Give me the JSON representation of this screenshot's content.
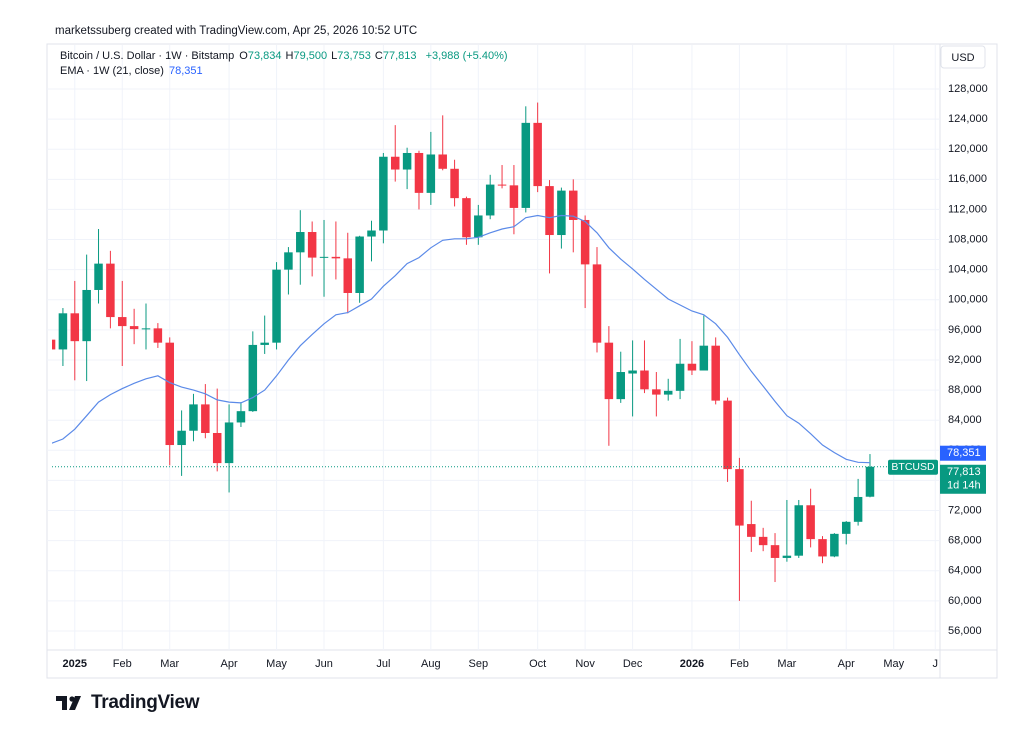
{
  "credit": "marketssuberg created with TradingView.com, Apr 25, 2026 10:52 UTC",
  "brand": "TradingView",
  "chart_data": {
    "type": "candlestick",
    "symbol": "Bitcoin / U.S. Dollar · 1W · Bitstamp",
    "ohlc": [
      {
        "label": "O",
        "value": "73,834"
      },
      {
        "label": "H",
        "value": "79,500"
      },
      {
        "label": "L",
        "value": "73,753"
      },
      {
        "label": "C",
        "value": "77,813"
      }
    ],
    "change": "+3,988 (+5.40%)",
    "currency": "USD",
    "countdown": "1d 14h",
    "up_color": "#089981",
    "down_color": "#f23645",
    "grid": true,
    "series": [
      {
        "name": "BTCUSD",
        "open": [
          94700,
          93400,
          98200,
          94500,
          101300,
          104800,
          97700,
          96500,
          96100,
          96200,
          94300,
          80700,
          82600,
          86100,
          82300,
          78300,
          83700,
          85200,
          94000,
          94300,
          104000,
          106300,
          109000,
          105600,
          105700,
          105500,
          100900,
          108400,
          109200,
          119000,
          117300,
          119500,
          114200,
          119300,
          117400,
          113500,
          108300,
          111200,
          115300,
          115200,
          112200,
          123500,
          115100,
          108600,
          114500,
          110600,
          104700,
          94300,
          86800,
          90200,
          90600,
          88100,
          87400,
          87900,
          91500,
          90600,
          93900,
          86600,
          77500,
          70200,
          68500,
          67400,
          65700,
          66000,
          72700,
          68200,
          65900,
          68900,
          70500,
          73834
        ],
        "high": [
          95300,
          98900,
          102500,
          106000,
          109400,
          106500,
          102500,
          98800,
          99500,
          96900,
          95000,
          85300,
          87500,
          88800,
          88200,
          86100,
          86400,
          95800,
          97900,
          105000,
          107000,
          111900,
          110400,
          110600,
          110400,
          108900,
          108500,
          110500,
          119500,
          123200,
          120200,
          119800,
          122300,
          124500,
          118600,
          113700,
          112600,
          116600,
          117900,
          117900,
          125700,
          126200,
          115900,
          114900,
          116000,
          111200,
          107000,
          96500,
          93100,
          94600,
          94600,
          90400,
          89500,
          94800,
          94500,
          97900,
          95000,
          87000,
          79000,
          73300,
          69700,
          69000,
          73400,
          73400,
          74900,
          68600,
          69000,
          70600,
          76200,
          79500
        ],
        "low": [
          92500,
          91200,
          89300,
          89200,
          99500,
          96200,
          91200,
          94100,
          93400,
          93600,
          78000,
          76600,
          81200,
          81600,
          77200,
          74400,
          83100,
          85100,
          92800,
          93400,
          100700,
          102000,
          103100,
          100400,
          102700,
          98200,
          99600,
          105100,
          107500,
          115700,
          114700,
          112000,
          112600,
          117200,
          112400,
          107300,
          107300,
          110700,
          114800,
          108700,
          111600,
          114300,
          103500,
          106800,
          106300,
          98900,
          93000,
          80600,
          86300,
          84500,
          87600,
          84500,
          86600,
          86800,
          90000,
          90600,
          86100,
          75800,
          60000,
          66500,
          66600,
          62500,
          65200,
          65700,
          67100,
          65000,
          65800,
          67500,
          70000,
          73753
        ],
        "close": [
          93400,
          98200,
          94500,
          101300,
          104800,
          97700,
          96500,
          96100,
          96200,
          94300,
          80700,
          82600,
          86100,
          82300,
          78300,
          83700,
          85200,
          94000,
          94300,
          104000,
          106300,
          109000,
          105600,
          105700,
          105500,
          100900,
          108400,
          109200,
          119000,
          117300,
          119500,
          114200,
          119300,
          117400,
          113500,
          108300,
          111200,
          115300,
          115200,
          112200,
          123500,
          115100,
          108600,
          114500,
          110600,
          104700,
          94300,
          86800,
          90400,
          90600,
          88100,
          87400,
          87900,
          91500,
          90600,
          93900,
          86600,
          77500,
          70000,
          68500,
          67400,
          65700,
          66000,
          72700,
          68200,
          65900,
          68900,
          70500,
          73800,
          77813
        ]
      },
      {
        "name": "EMA · 1W (21, close)",
        "color": "#5b8ae8",
        "values": [
          80900,
          81500,
          82800,
          84600,
          86400,
          87400,
          88200,
          88900,
          89500,
          89900,
          89000,
          88400,
          88000,
          87500,
          86700,
          86400,
          86300,
          87000,
          88000,
          89900,
          92000,
          93900,
          95400,
          96800,
          98000,
          98300,
          99200,
          100100,
          101800,
          103200,
          104800,
          105600,
          106900,
          107900,
          108100,
          108100,
          108300,
          108900,
          109400,
          109700,
          110900,
          111200,
          110900,
          111200,
          111100,
          110400,
          108900,
          106900,
          105400,
          104100,
          102700,
          101400,
          100100,
          99300,
          98500,
          98000,
          96800,
          95000,
          92700,
          90500,
          88500,
          86500,
          84600,
          83600,
          82200,
          80700,
          79700,
          78800,
          78400,
          78351
        ]
      }
    ],
    "last_price": {
      "value": 77813,
      "label": "77,813"
    },
    "ema_last": {
      "value": 78351,
      "label": "78,351"
    },
    "xlim": [
      0.08,
      74.9
    ],
    "xticks": [
      {
        "value": 2,
        "label": "2025"
      },
      {
        "value": 6,
        "label": "Feb"
      },
      {
        "value": 10,
        "label": "Mar"
      },
      {
        "value": 15,
        "label": "Apr"
      },
      {
        "value": 19,
        "label": "May"
      },
      {
        "value": 23,
        "label": "Jun"
      },
      {
        "value": 28,
        "label": "Jul"
      },
      {
        "value": 32,
        "label": "Aug"
      },
      {
        "value": 36,
        "label": "Sep"
      },
      {
        "value": 41,
        "label": "Oct"
      },
      {
        "value": 45,
        "label": "Nov"
      },
      {
        "value": 49,
        "label": "Dec"
      },
      {
        "value": 54,
        "label": "2026"
      },
      {
        "value": 58,
        "label": "Feb"
      },
      {
        "value": 62,
        "label": "Mar"
      },
      {
        "value": 67,
        "label": "Apr"
      },
      {
        "value": 71,
        "label": "May"
      },
      {
        "value": 74.5,
        "label": "J"
      }
    ],
    "ylim": [
      53470,
      133845
    ],
    "yticks": [
      {
        "value": 56000,
        "label": "56,000"
      },
      {
        "value": 60000,
        "label": "60,000"
      },
      {
        "value": 64000,
        "label": "64,000"
      },
      {
        "value": 68000,
        "label": "68,000"
      },
      {
        "value": 72000,
        "label": "72,000"
      },
      {
        "value": 76000,
        "label": "76,000"
      },
      {
        "value": 80000,
        "label": "80,000"
      },
      {
        "value": 84000,
        "label": "84,000"
      },
      {
        "value": 88000,
        "label": "88,000"
      },
      {
        "value": 92000,
        "label": "92,000"
      },
      {
        "value": 96000,
        "label": "96,000"
      },
      {
        "value": 100000,
        "label": "100,000"
      },
      {
        "value": 104000,
        "label": "104,000"
      },
      {
        "value": 108000,
        "label": "108,000"
      },
      {
        "value": 112000,
        "label": "112,000"
      },
      {
        "value": 116000,
        "label": "116,000"
      },
      {
        "value": 120000,
        "label": "120,000"
      },
      {
        "value": 124000,
        "label": "124,000"
      },
      {
        "value": 128000,
        "label": "128,000"
      }
    ]
  }
}
